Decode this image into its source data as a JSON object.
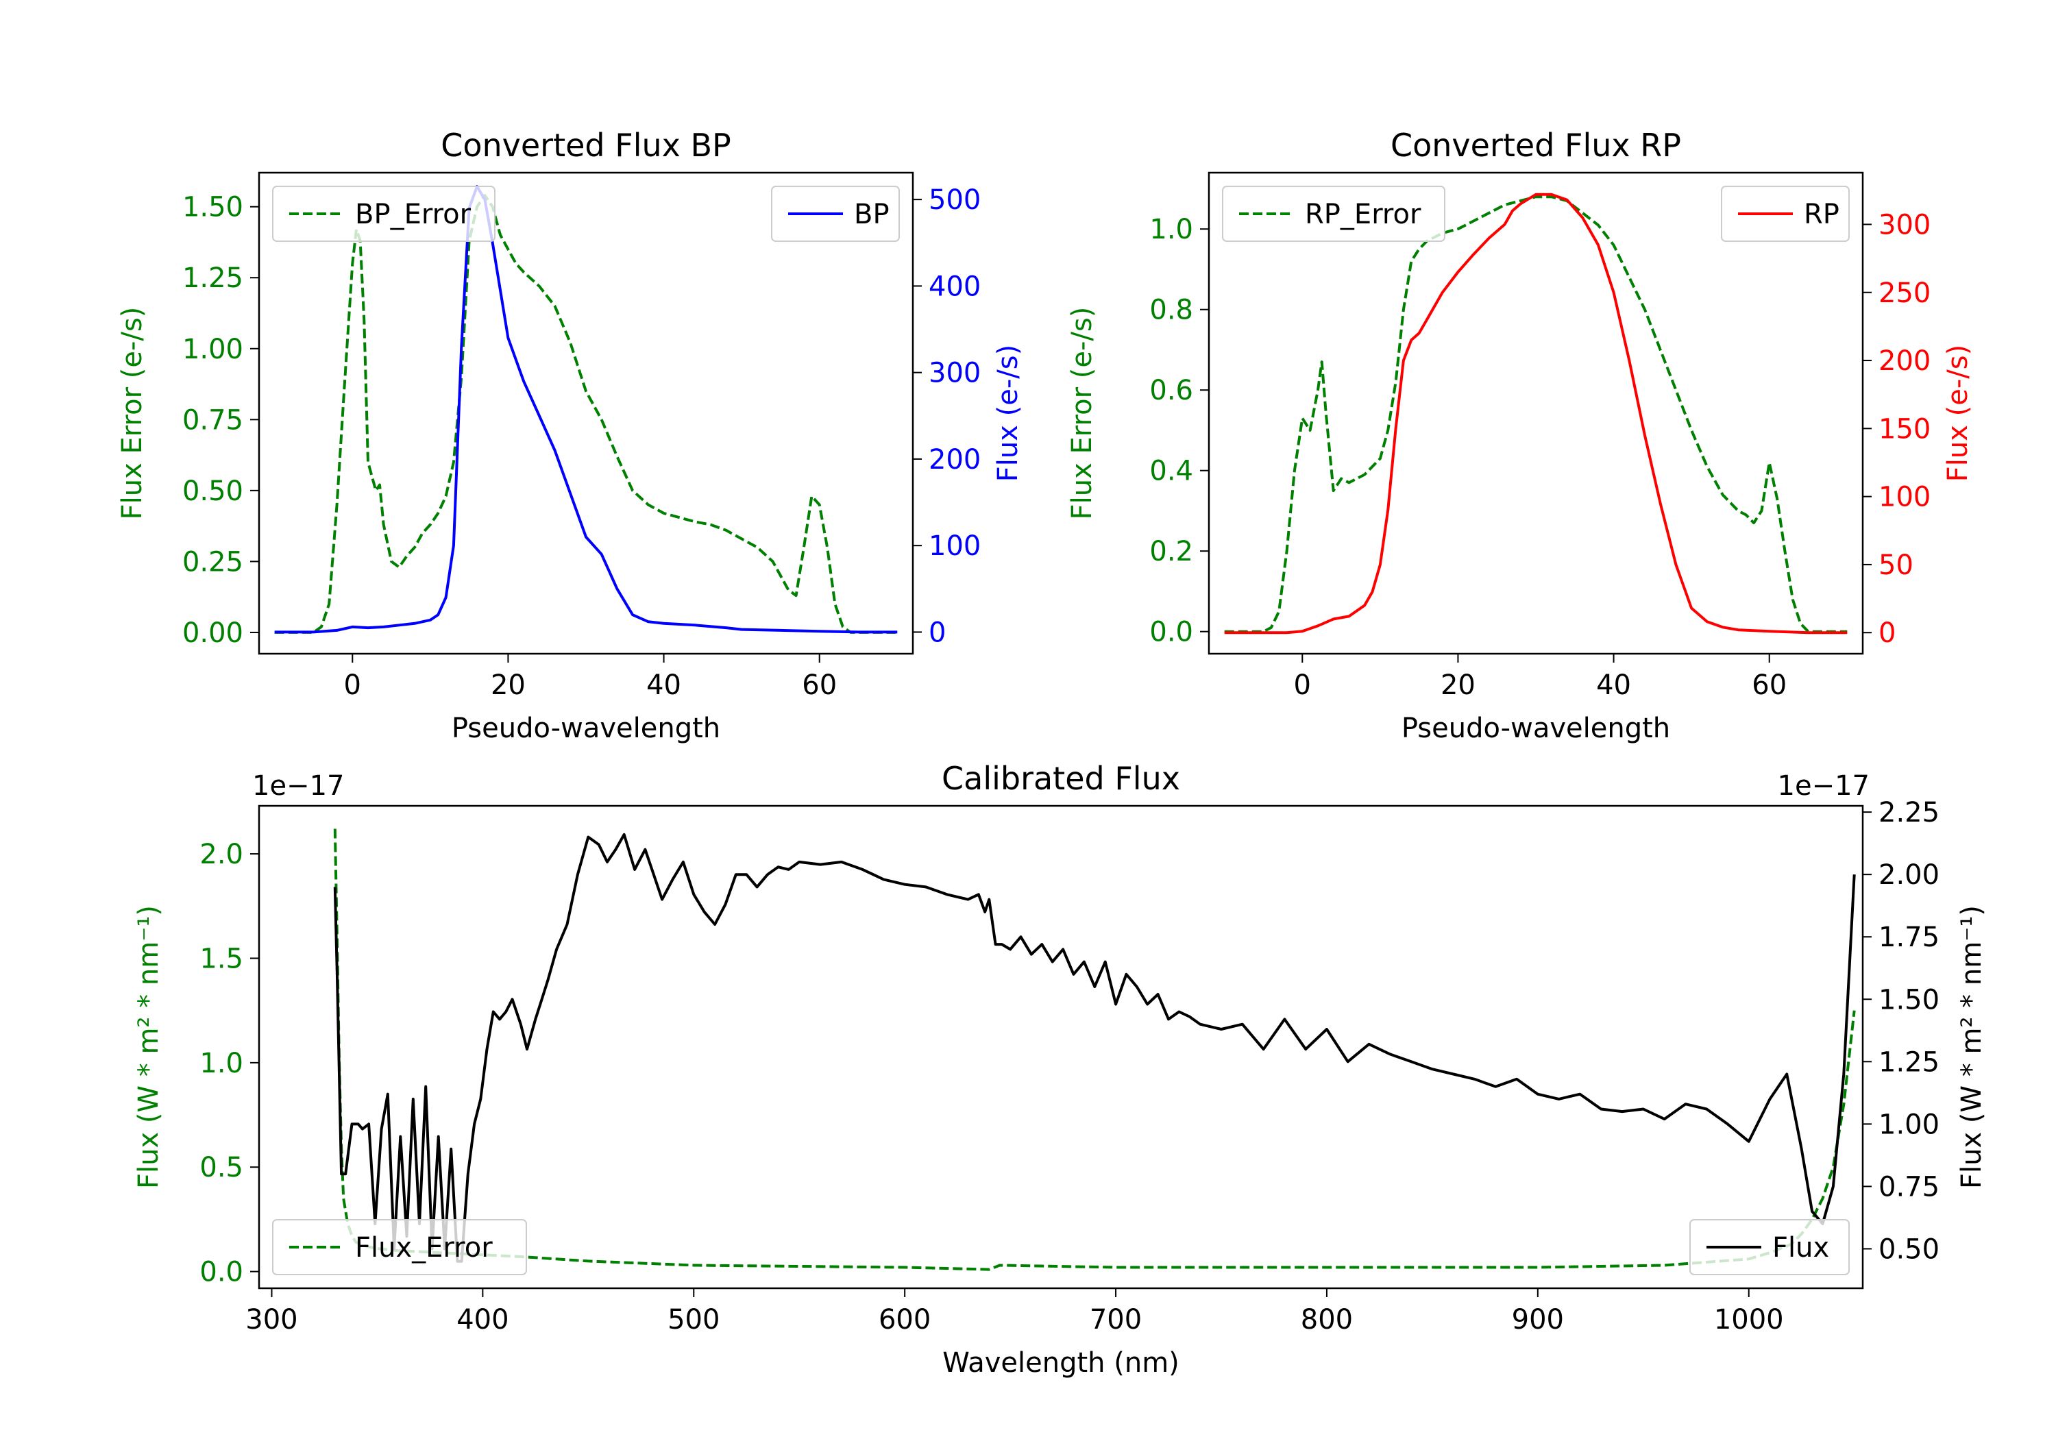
{
  "chart_data": [
    {
      "id": "bp",
      "type": "line",
      "title": "Converted Flux BP",
      "xlabel": "Pseudo-wavelength",
      "ylabel_left": "Flux Error (e-/s)",
      "ylabel_right": "Flux (e-/s)",
      "xlim": [
        -12,
        72
      ],
      "ylim_left": [
        -0.075,
        1.62
      ],
      "ylim_right": [
        -25,
        531
      ],
      "xticks": [
        0,
        20,
        40,
        60
      ],
      "yticks_left": [
        0.0,
        0.25,
        0.5,
        0.75,
        1.0,
        1.25,
        1.5
      ],
      "ytick_labels_left": [
        "0.00",
        "0.25",
        "0.50",
        "0.75",
        "1.00",
        "1.25",
        "1.50"
      ],
      "yticks_right": [
        0,
        100,
        200,
        300,
        400,
        500
      ],
      "ytick_labels_right": [
        "0",
        "100",
        "200",
        "300",
        "400",
        "500"
      ],
      "legend_left": "top-left",
      "legend_right": "top-right",
      "series": [
        {
          "name": "BP_Error",
          "axis": "left",
          "color": "#008000",
          "style": "dashed",
          "x": [
            -10,
            -5,
            -4,
            -3,
            -2,
            -1,
            0,
            0.5,
            1,
            1.5,
            2,
            3,
            3.5,
            4,
            5,
            6,
            7,
            8,
            9,
            10,
            11,
            12,
            13,
            14,
            15,
            16,
            17,
            18,
            19,
            20,
            21,
            22,
            24,
            26,
            28,
            30,
            32,
            34,
            36,
            38,
            40,
            44,
            46,
            48,
            50,
            52,
            54,
            56,
            57,
            58,
            59,
            60,
            61,
            62,
            63,
            64,
            65,
            70
          ],
          "y": [
            0,
            0,
            0.02,
            0.1,
            0.45,
            0.88,
            1.3,
            1.42,
            1.38,
            1.1,
            0.6,
            0.5,
            0.52,
            0.38,
            0.25,
            0.23,
            0.27,
            0.3,
            0.35,
            0.38,
            0.42,
            0.48,
            0.6,
            0.9,
            1.38,
            1.5,
            1.54,
            1.5,
            1.4,
            1.35,
            1.3,
            1.27,
            1.22,
            1.15,
            1.02,
            0.85,
            0.75,
            0.62,
            0.5,
            0.45,
            0.42,
            0.39,
            0.38,
            0.36,
            0.33,
            0.3,
            0.25,
            0.15,
            0.13,
            0.3,
            0.48,
            0.45,
            0.3,
            0.1,
            0.02,
            0,
            0,
            0
          ]
        },
        {
          "name": "BP",
          "axis": "right",
          "color": "#0000ff",
          "style": "solid",
          "x": [
            -10,
            -5,
            -2,
            0,
            2,
            4,
            6,
            8,
            10,
            11,
            12,
            13,
            14,
            15,
            16,
            17,
            18,
            20,
            22,
            24,
            26,
            28,
            30,
            32,
            34,
            36,
            38,
            40,
            44,
            48,
            50,
            55,
            60,
            65,
            70
          ],
          "y": [
            0,
            0,
            2,
            6,
            5,
            6,
            8,
            10,
            14,
            20,
            40,
            100,
            330,
            490,
            515,
            500,
            450,
            340,
            290,
            250,
            210,
            160,
            110,
            90,
            50,
            20,
            12,
            10,
            8,
            5,
            3,
            2,
            1,
            0,
            0
          ]
        }
      ]
    },
    {
      "id": "rp",
      "type": "line",
      "title": "Converted Flux RP",
      "xlabel": "Pseudo-wavelength",
      "ylabel_left": "Flux Error (e-/s)",
      "ylabel_right": "Flux (e-/s)",
      "xlim": [
        -12,
        72
      ],
      "ylim_left": [
        -0.055,
        1.14
      ],
      "ylim_right": [
        -15.5,
        338
      ],
      "xticks": [
        0,
        20,
        40,
        60
      ],
      "yticks_left": [
        0.0,
        0.2,
        0.4,
        0.6,
        0.8,
        1.0
      ],
      "ytick_labels_left": [
        "0.0",
        "0.2",
        "0.4",
        "0.6",
        "0.8",
        "1.0"
      ],
      "yticks_right": [
        0,
        50,
        100,
        150,
        200,
        250,
        300
      ],
      "ytick_labels_right": [
        "0",
        "50",
        "100",
        "150",
        "200",
        "250",
        "300"
      ],
      "legend_left": "top-left",
      "legend_right": "top-right",
      "series": [
        {
          "name": "RP_Error",
          "axis": "left",
          "color": "#008000",
          "style": "dashed",
          "x": [
            -10,
            -5,
            -4,
            -3,
            -2,
            -1,
            0,
            1,
            2,
            2.5,
            3,
            3.5,
            4,
            5,
            6,
            8,
            10,
            11,
            12,
            13,
            14,
            15,
            16,
            18,
            20,
            22,
            24,
            26,
            28,
            30,
            32,
            34,
            36,
            38,
            40,
            42,
            44,
            46,
            48,
            50,
            52,
            54,
            56,
            57,
            58,
            59,
            60,
            61,
            62,
            63,
            64,
            65,
            70
          ],
          "y": [
            0,
            0,
            0.01,
            0.05,
            0.2,
            0.4,
            0.53,
            0.5,
            0.6,
            0.67,
            0.55,
            0.45,
            0.35,
            0.38,
            0.37,
            0.39,
            0.43,
            0.5,
            0.62,
            0.8,
            0.92,
            0.95,
            0.97,
            0.99,
            1.0,
            1.02,
            1.04,
            1.06,
            1.07,
            1.08,
            1.08,
            1.07,
            1.04,
            1.01,
            0.96,
            0.88,
            0.8,
            0.7,
            0.6,
            0.5,
            0.41,
            0.34,
            0.3,
            0.29,
            0.27,
            0.3,
            0.42,
            0.33,
            0.2,
            0.08,
            0.02,
            0,
            0
          ]
        },
        {
          "name": "RP",
          "axis": "right",
          "color": "#ff0000",
          "style": "solid",
          "x": [
            -10,
            -5,
            -2,
            0,
            2,
            4,
            6,
            8,
            9,
            10,
            11,
            12,
            13,
            14,
            15,
            16,
            18,
            20,
            22,
            24,
            26,
            27,
            28,
            30,
            32,
            34,
            36,
            38,
            40,
            42,
            44,
            46,
            48,
            50,
            52,
            54,
            56,
            60,
            65,
            70
          ],
          "y": [
            0,
            0,
            0,
            1,
            5,
            10,
            12,
            20,
            30,
            50,
            90,
            150,
            200,
            215,
            220,
            230,
            250,
            265,
            278,
            290,
            300,
            310,
            315,
            322,
            322,
            318,
            305,
            285,
            250,
            200,
            145,
            95,
            50,
            18,
            8,
            4,
            2,
            1,
            0,
            0
          ]
        }
      ]
    },
    {
      "id": "cal",
      "type": "line",
      "title": "Calibrated Flux",
      "xlabel": "Wavelength (nm)",
      "ylabel_left": "Flux (W * m² * nm⁻¹)",
      "ylabel_right": "Flux (W * m² * nm⁻¹)",
      "offset_left": "1e−17",
      "offset_right": "1e−17",
      "xlim": [
        294,
        1054
      ],
      "ylim_left": [
        -0.08,
        2.23
      ],
      "ylim_right": [
        0.342,
        2.275
      ],
      "xticks": [
        300,
        400,
        500,
        600,
        700,
        800,
        900,
        1000
      ],
      "yticks_left": [
        0.0,
        0.5,
        1.0,
        1.5,
        2.0
      ],
      "ytick_labels_left": [
        "0.0",
        "0.5",
        "1.0",
        "1.5",
        "2.0"
      ],
      "yticks_right": [
        0.5,
        0.75,
        1.0,
        1.25,
        1.5,
        1.75,
        2.0,
        2.25
      ],
      "ytick_labels_right": [
        "0.50",
        "0.75",
        "1.00",
        "1.25",
        "1.50",
        "1.75",
        "2.00",
        "2.25"
      ],
      "legend_left": "bottom-left",
      "legend_right": "bottom-right",
      "series": [
        {
          "name": "Flux_Error",
          "axis": "left",
          "color": "#008000",
          "style": "dashed",
          "x": [
            330,
            331,
            332,
            333,
            334,
            336,
            338,
            340,
            345,
            350,
            360,
            380,
            400,
            420,
            450,
            500,
            600,
            640,
            645,
            700,
            800,
            900,
            960,
            1000,
            1010,
            1020,
            1025,
            1030,
            1035,
            1040,
            1045,
            1050
          ],
          "y": [
            2.12,
            1.6,
            1.0,
            0.6,
            0.35,
            0.23,
            0.17,
            0.14,
            0.12,
            0.11,
            0.1,
            0.09,
            0.08,
            0.07,
            0.05,
            0.03,
            0.02,
            0.01,
            0.03,
            0.02,
            0.02,
            0.02,
            0.03,
            0.06,
            0.09,
            0.13,
            0.18,
            0.25,
            0.35,
            0.5,
            0.8,
            1.25
          ]
        },
        {
          "name": "Flux",
          "axis": "right",
          "color": "#000000",
          "style": "solid",
          "x": [
            330,
            331,
            333,
            335,
            338,
            341,
            343,
            346,
            349,
            352,
            355,
            358,
            361,
            364,
            367,
            370,
            373,
            376,
            379,
            382,
            385,
            388,
            390,
            393,
            396,
            399,
            402,
            405,
            408,
            411,
            414,
            418,
            421,
            425,
            428,
            431,
            435,
            440,
            445,
            450,
            455,
            459,
            463,
            467,
            472,
            477,
            481,
            485,
            490,
            495,
            500,
            505,
            510,
            515,
            520,
            525,
            530,
            535,
            540,
            545,
            550,
            560,
            570,
            580,
            590,
            600,
            610,
            620,
            630,
            635,
            638,
            640,
            643,
            646,
            650,
            655,
            660,
            665,
            670,
            675,
            680,
            685,
            690,
            695,
            700,
            705,
            710,
            715,
            720,
            725,
            730,
            735,
            740,
            750,
            760,
            770,
            780,
            790,
            800,
            810,
            820,
            830,
            840,
            850,
            860,
            870,
            880,
            890,
            900,
            910,
            920,
            930,
            940,
            950,
            960,
            970,
            980,
            990,
            1000,
            1010,
            1018,
            1025,
            1030,
            1035,
            1040,
            1045,
            1050
          ],
          "y": [
            1.95,
            1.6,
            0.8,
            0.8,
            1.0,
            1.0,
            0.98,
            1.0,
            0.6,
            0.98,
            1.12,
            0.5,
            0.95,
            0.55,
            1.1,
            0.6,
            1.15,
            0.5,
            0.95,
            0.5,
            0.9,
            0.45,
            0.45,
            0.8,
            1.0,
            1.1,
            1.3,
            1.45,
            1.42,
            1.45,
            1.5,
            1.4,
            1.3,
            1.42,
            1.5,
            1.58,
            1.7,
            1.8,
            2.0,
            2.15,
            2.12,
            2.05,
            2.1,
            2.16,
            2.02,
            2.1,
            2.0,
            1.9,
            1.98,
            2.05,
            1.92,
            1.85,
            1.8,
            1.88,
            2.0,
            2.0,
            1.95,
            2.0,
            2.03,
            2.02,
            2.05,
            2.04,
            2.05,
            2.02,
            1.98,
            1.96,
            1.95,
            1.92,
            1.9,
            1.92,
            1.85,
            1.9,
            1.72,
            1.72,
            1.7,
            1.75,
            1.68,
            1.72,
            1.65,
            1.7,
            1.6,
            1.65,
            1.55,
            1.65,
            1.48,
            1.6,
            1.55,
            1.48,
            1.52,
            1.42,
            1.45,
            1.43,
            1.4,
            1.38,
            1.4,
            1.3,
            1.42,
            1.3,
            1.38,
            1.25,
            1.32,
            1.28,
            1.25,
            1.22,
            1.2,
            1.18,
            1.15,
            1.18,
            1.12,
            1.1,
            1.12,
            1.06,
            1.05,
            1.06,
            1.02,
            1.08,
            1.06,
            1.0,
            0.93,
            1.1,
            1.2,
            0.9,
            0.65,
            0.6,
            0.75,
            1.2,
            2.0
          ]
        }
      ]
    }
  ]
}
